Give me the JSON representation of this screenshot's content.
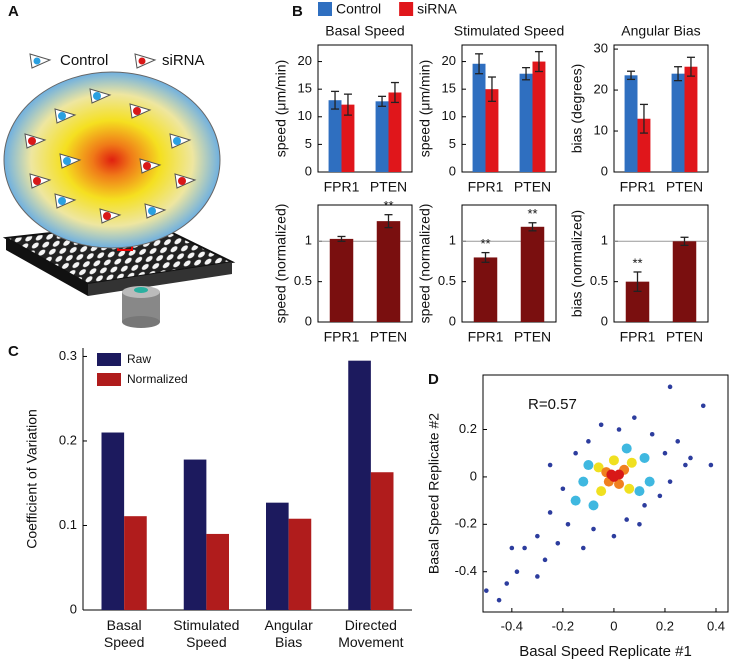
{
  "panel_labels": [
    "A",
    "B",
    "C",
    "D"
  ],
  "illustration_legend": [
    "Control",
    "siRNA"
  ],
  "chart_data": [
    {
      "type": "bar",
      "title": "Basal Speed",
      "y_label": "speed (μm/min)",
      "categories": [
        "FPR1",
        "PTEN"
      ],
      "series": [
        {
          "name": "Control",
          "color": "#2f6fc0",
          "values": [
            13,
            12.8
          ],
          "errors": [
            1.6,
            0.9
          ]
        },
        {
          "name": "siRNA",
          "color": "#e0161b",
          "values": [
            12.2,
            14.4
          ],
          "errors": [
            1.9,
            1.8
          ]
        }
      ],
      "ylim": [
        0,
        23
      ],
      "yticks": [
        0,
        5,
        10,
        15,
        20
      ],
      "legend": "above"
    },
    {
      "type": "bar",
      "title": "Stimulated Speed",
      "y_label": "speed (μm/min)",
      "categories": [
        "FPR1",
        "PTEN"
      ],
      "series": [
        {
          "name": "Control",
          "color": "#2f6fc0",
          "values": [
            19.6,
            17.8
          ],
          "errors": [
            1.8,
            1.1
          ]
        },
        {
          "name": "siRNA",
          "color": "#e0161b",
          "values": [
            15,
            20
          ],
          "errors": [
            2.2,
            1.8
          ]
        }
      ],
      "ylim": [
        0,
        23
      ],
      "yticks": [
        0,
        5,
        10,
        15,
        20
      ]
    },
    {
      "type": "bar",
      "title": "Angular Bias",
      "y_label": "bias (degrees)",
      "categories": [
        "FPR1",
        "PTEN"
      ],
      "series": [
        {
          "name": "Control",
          "color": "#2f6fc0",
          "values": [
            23.6,
            24
          ],
          "errors": [
            1,
            1.7
          ]
        },
        {
          "name": "siRNA",
          "color": "#e0161b",
          "values": [
            13,
            25.7
          ],
          "errors": [
            3.5,
            2.3
          ]
        }
      ],
      "ylim": [
        0,
        31
      ],
      "yticks": [
        0,
        10,
        20,
        30
      ]
    },
    {
      "type": "bar",
      "y_label": "speed (normalized)",
      "categories": [
        "FPR1",
        "PTEN"
      ],
      "values": [
        1.03,
        1.25
      ],
      "errors": [
        0.03,
        0.08
      ],
      "color": "#7a0f0f",
      "annotations": [
        {
          "category": "PTEN",
          "text": "**"
        }
      ],
      "hline": 1,
      "ylim": [
        0,
        1.45
      ],
      "yticks": [
        0,
        0.5,
        1
      ]
    },
    {
      "type": "bar",
      "y_label": "speed (normalized)",
      "categories": [
        "FPR1",
        "PTEN"
      ],
      "values": [
        0.8,
        1.18
      ],
      "errors": [
        0.06,
        0.05
      ],
      "color": "#7a0f0f",
      "annotations": [
        {
          "category": "FPR1",
          "text": "**"
        },
        {
          "category": "PTEN",
          "text": "**"
        }
      ],
      "hline": 1,
      "ylim": [
        0,
        1.45
      ],
      "yticks": [
        0,
        0.5,
        1
      ]
    },
    {
      "type": "bar",
      "y_label": "bias (normalized)",
      "categories": [
        "FPR1",
        "PTEN"
      ],
      "values": [
        0.5,
        1.0
      ],
      "errors": [
        0.12,
        0.05
      ],
      "color": "#7a0f0f",
      "annotations": [
        {
          "category": "FPR1",
          "text": "**"
        }
      ],
      "hline": 1,
      "ylim": [
        0,
        1.45
      ],
      "yticks": [
        0,
        0.5,
        1
      ]
    },
    {
      "type": "bar",
      "y_label": "Coefficient of Variation",
      "categories": [
        "Basal Speed",
        "Stimulated Speed",
        "Angular Bias",
        "Directed Movement"
      ],
      "series": [
        {
          "name": "Raw",
          "color": "#1c1a5e",
          "values": [
            0.21,
            0.178,
            0.127,
            0.295
          ]
        },
        {
          "name": "Normalized",
          "color": "#b01c1c",
          "values": [
            0.111,
            0.09,
            0.108,
            0.163
          ]
        }
      ],
      "ylim": [
        0,
        0.31
      ],
      "yticks": [
        0,
        0.1,
        0.2,
        0.3
      ],
      "legend": "upper left"
    },
    {
      "type": "scatter",
      "x_label": "Basal Speed Replicate #1",
      "y_label": "Basal Speed Replicate #2",
      "annotation": "R=0.57",
      "xlim": [
        -0.513,
        0.447
      ],
      "ylim": [
        -0.57,
        0.43
      ],
      "xticks": [
        -0.4,
        -0.2,
        0,
        0.2,
        0.4
      ],
      "yticks": [
        -0.4,
        -0.2,
        0,
        0.2
      ],
      "series": [
        {
          "color": "#2d3d9e",
          "x": [
            -0.5,
            -0.45,
            -0.42,
            -0.38,
            -0.35,
            -0.3,
            -0.3,
            -0.27,
            -0.25,
            -0.22,
            -0.2,
            -0.18,
            -0.15,
            -0.12,
            -0.1,
            -0.08,
            -0.05,
            0.0,
            0.02,
            0.05,
            0.08,
            0.12,
            0.15,
            0.18,
            0.2,
            0.22,
            0.25,
            0.28,
            0.3,
            0.35,
            0.38,
            0.22,
            -0.25,
            0.1,
            -0.4
          ],
          "y": [
            -0.48,
            -0.52,
            -0.45,
            -0.4,
            -0.3,
            -0.42,
            -0.25,
            -0.35,
            -0.15,
            -0.28,
            -0.05,
            -0.2,
            0.1,
            -0.3,
            0.15,
            -0.22,
            0.22,
            -0.25,
            0.2,
            -0.18,
            0.25,
            -0.12,
            0.18,
            -0.08,
            0.1,
            -0.02,
            0.15,
            0.05,
            0.08,
            0.3,
            0.05,
            0.38,
            0.05,
            -0.2,
            -0.3
          ]
        },
        {
          "color": "#3fb8e0",
          "x": [
            -0.15,
            -0.1,
            -0.08,
            0.12,
            0.1,
            -0.12,
            0.05,
            0.14
          ],
          "y": [
            -0.1,
            0.05,
            -0.12,
            0.08,
            -0.06,
            -0.02,
            0.12,
            -0.02
          ]
        },
        {
          "color": "#f0e020",
          "x": [
            -0.06,
            0.07,
            0.06,
            -0.05,
            0.0
          ],
          "y": [
            0.04,
            0.06,
            -0.05,
            -0.06,
            0.07
          ]
        },
        {
          "color": "#f08020",
          "x": [
            -0.03,
            0.04,
            0.02,
            -0.02
          ],
          "y": [
            0.02,
            0.03,
            -0.03,
            -0.02
          ]
        },
        {
          "color": "#d81818",
          "x": [
            0,
            0.02,
            -0.01
          ],
          "y": [
            0,
            0.01,
            0.01
          ]
        }
      ]
    }
  ]
}
